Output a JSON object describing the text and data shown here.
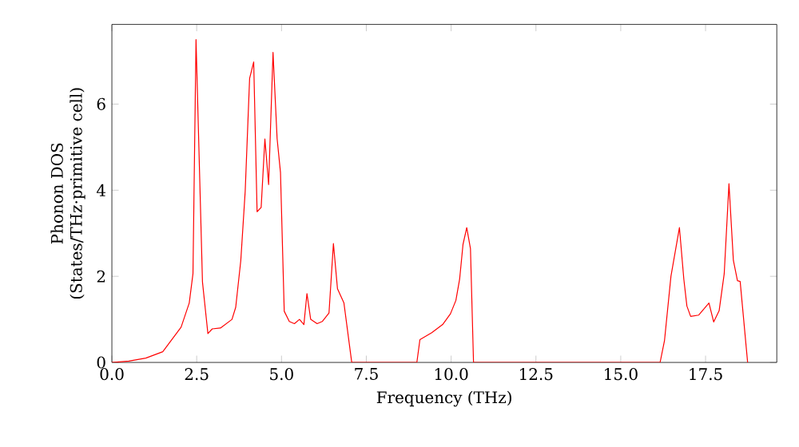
{
  "chart_data": {
    "type": "line",
    "xlabel": "Frequency (THz)",
    "ylabel": "Phonon DOS\n(States/THz·primitive cell)",
    "xlim": [
      0,
      19.6
    ],
    "ylim": [
      0,
      7.85
    ],
    "xticks": [
      {
        "value": 0,
        "label": "0.0"
      },
      {
        "value": 2.5,
        "label": "2.5"
      },
      {
        "value": 5,
        "label": "5.0"
      },
      {
        "value": 7.5,
        "label": "7.5"
      },
      {
        "value": 10,
        "label": "10.0"
      },
      {
        "value": 12.5,
        "label": "12.5"
      },
      {
        "value": 15,
        "label": "15.0"
      },
      {
        "value": 17.5,
        "label": "17.5"
      }
    ],
    "yticks": [
      0,
      2,
      4,
      6
    ],
    "series": [
      {
        "color": "#ff0000",
        "x": [
          0,
          0.5,
          1.0,
          1.5,
          2.04,
          2.28,
          2.39,
          2.48,
          2.67,
          2.83,
          2.96,
          3.2,
          3.54,
          3.65,
          3.8,
          3.93,
          4.06,
          4.18,
          4.28,
          4.4,
          4.51,
          4.62,
          4.75,
          4.87,
          4.97,
          5.08,
          5.23,
          5.38,
          5.53,
          5.66,
          5.75,
          5.86,
          6.05,
          6.2,
          6.4,
          6.53,
          6.65,
          6.84,
          7.07,
          8.99,
          9.08,
          9.43,
          9.75,
          9.98,
          10.14,
          10.25,
          10.35,
          10.46,
          10.57,
          10.66,
          16.16,
          16.29,
          16.48,
          16.73,
          16.86,
          16.95,
          17.06,
          17.3,
          17.6,
          17.74,
          17.9,
          18.05,
          18.19,
          18.32,
          18.44,
          18.52,
          18.74
        ],
        "values": [
          0,
          0.03,
          0.1,
          0.25,
          0.82,
          1.38,
          2.06,
          7.5,
          1.87,
          0.67,
          0.78,
          0.8,
          1.0,
          1.28,
          2.37,
          3.98,
          6.6,
          6.98,
          3.5,
          3.6,
          5.19,
          4.13,
          7.2,
          5.2,
          4.41,
          1.19,
          0.95,
          0.9,
          1.0,
          0.88,
          1.6,
          1.0,
          0.9,
          0.95,
          1.15,
          2.76,
          1.71,
          1.38,
          0,
          0,
          0.53,
          0.69,
          0.88,
          1.13,
          1.44,
          1.93,
          2.74,
          3.13,
          2.64,
          0,
          0,
          0.51,
          2.0,
          3.13,
          1.93,
          1.31,
          1.07,
          1.1,
          1.38,
          0.94,
          1.2,
          2.06,
          4.15,
          2.37,
          1.9,
          1.88,
          0
        ]
      }
    ]
  }
}
